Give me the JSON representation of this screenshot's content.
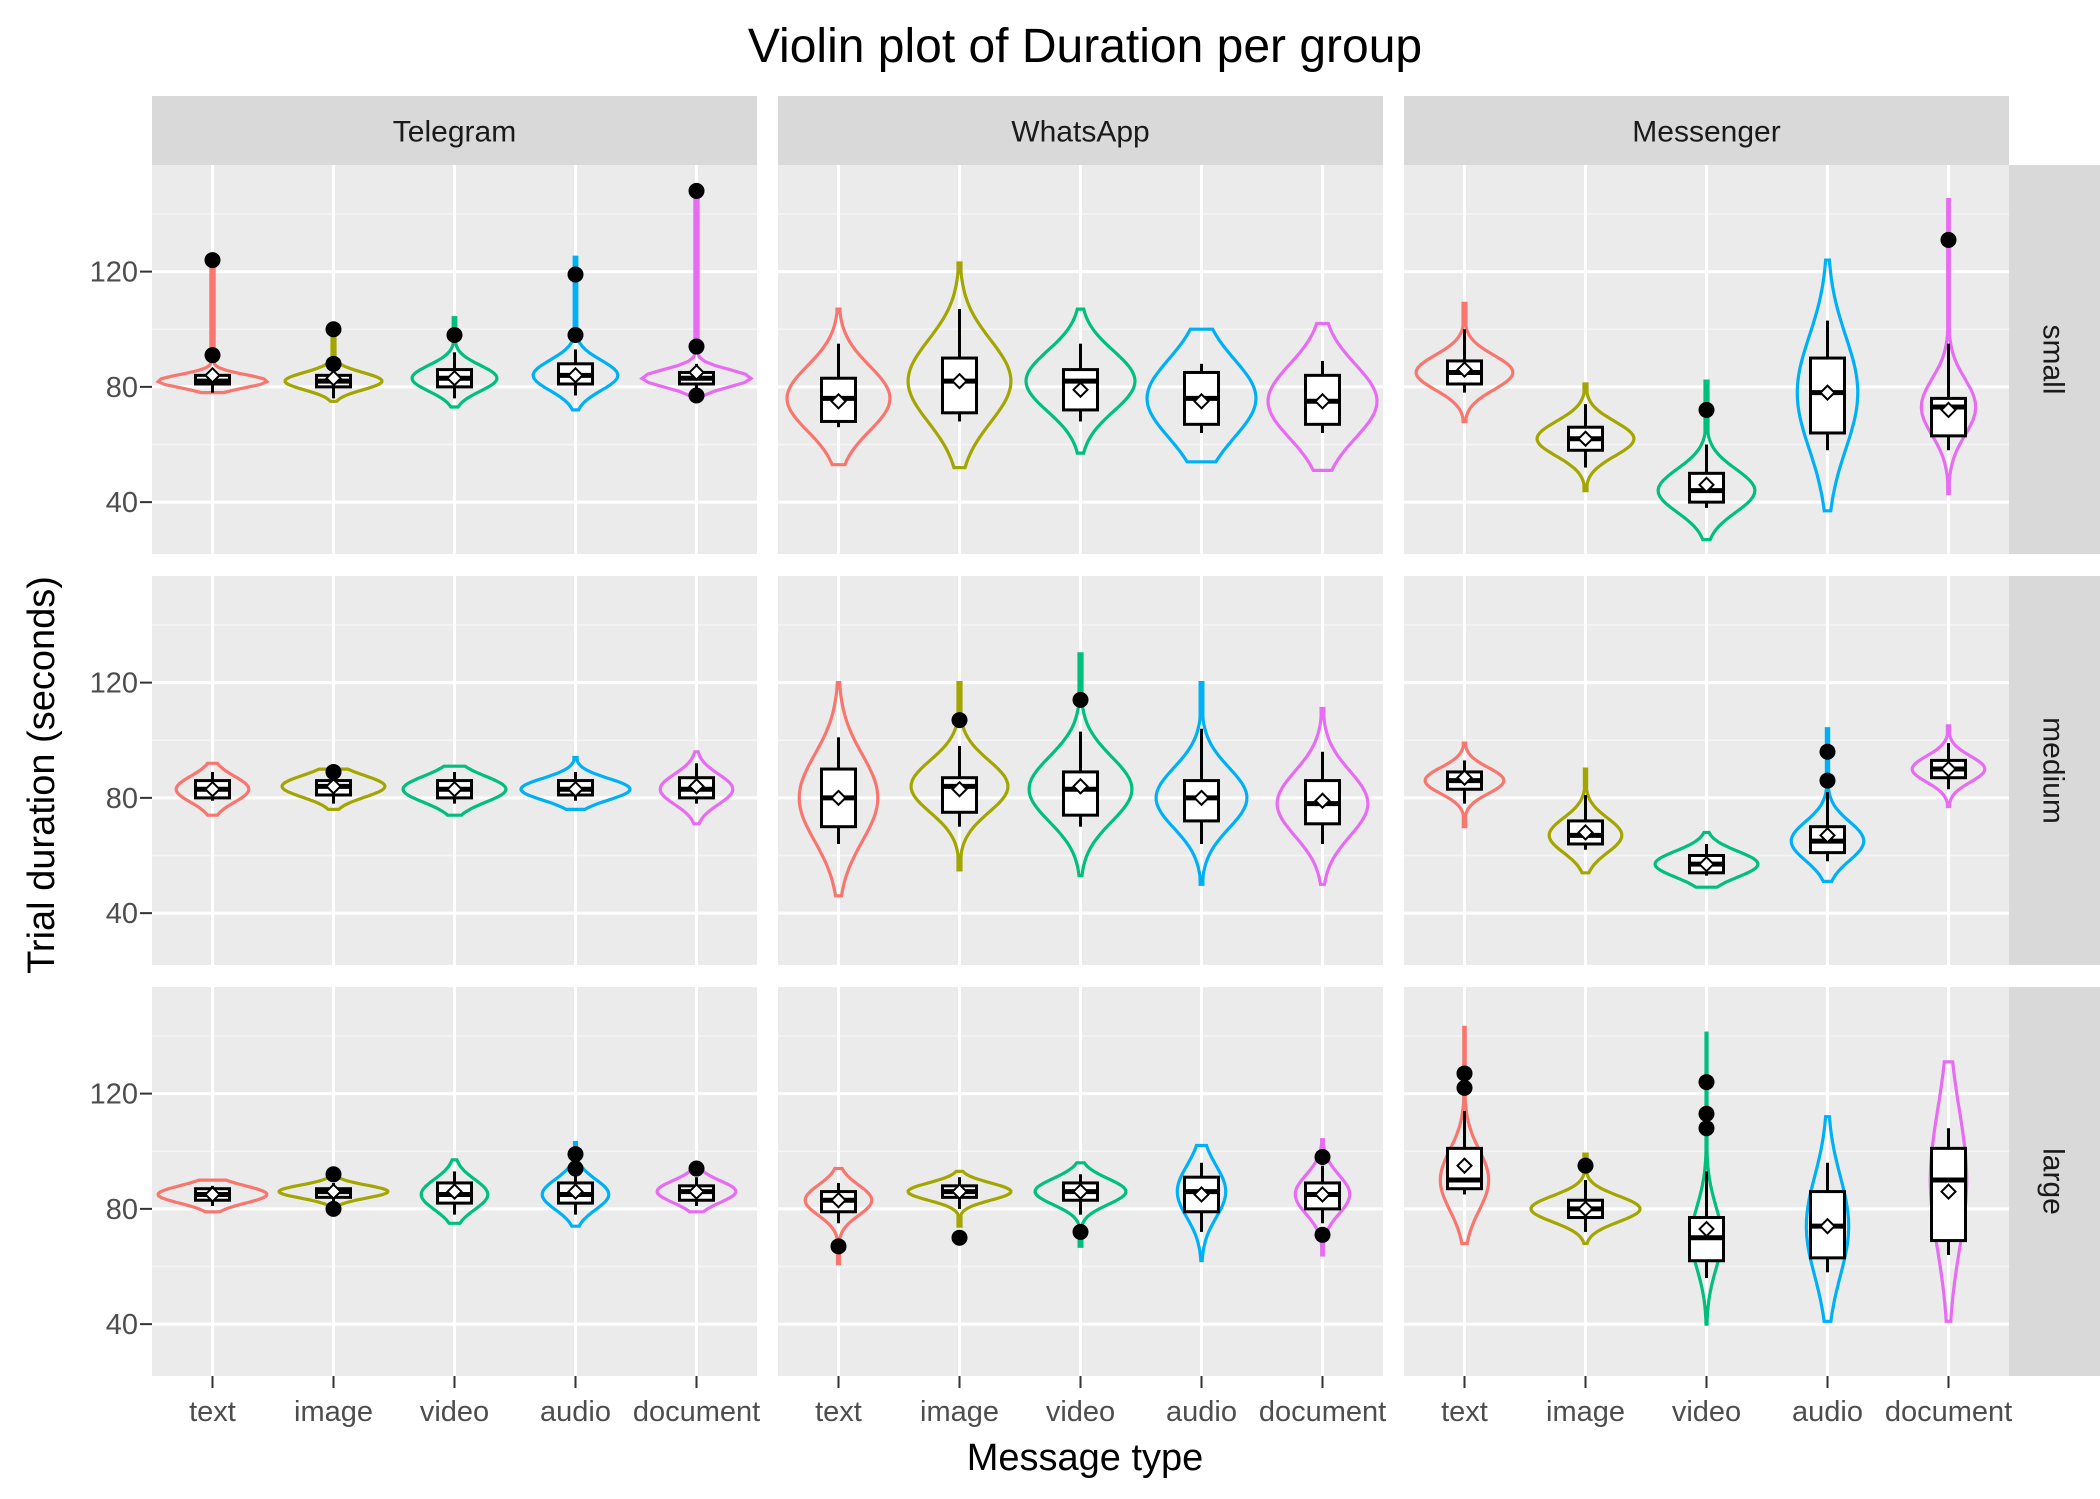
{
  "chart_data": {
    "type": "violin",
    "title": "Violin plot of Duration per group",
    "xlabel": "Message type",
    "ylabel": "Trial duration (seconds)",
    "categories": [
      "text",
      "image",
      "video",
      "audio",
      "document"
    ],
    "columns": [
      "Telegram",
      "WhatsApp",
      "Messenger"
    ],
    "rows": [
      "small",
      "medium",
      "large"
    ],
    "y_ticks": [
      40,
      80,
      120
    ],
    "ylim": [
      22,
      157
    ],
    "category_colors": [
      "#F8766D",
      "#A3A500",
      "#00BF7D",
      "#00B0F6",
      "#E76BF3"
    ],
    "grid": true,
    "panels": [
      {
        "column": "Telegram",
        "row": "small",
        "groups": [
          {
            "category": "text",
            "vmin": 78,
            "vmax": 124,
            "q1": 81,
            "median": 82,
            "q3": 84,
            "wlo": 78,
            "whi": 86,
            "mean": 84,
            "outliers": [
              91,
              124
            ],
            "maxw": 0.9
          },
          {
            "category": "image",
            "vmin": 75,
            "vmax": 100,
            "q1": 80,
            "median": 82,
            "q3": 84,
            "wlo": 76,
            "whi": 88,
            "mean": 83,
            "outliers": [
              88,
              100
            ],
            "maxw": 0.8
          },
          {
            "category": "video",
            "vmin": 73,
            "vmax": 104,
            "q1": 80,
            "median": 83,
            "q3": 86,
            "wlo": 76,
            "whi": 92,
            "mean": 83,
            "outliers": [
              98
            ],
            "maxw": 0.7
          },
          {
            "category": "audio",
            "vmin": 72,
            "vmax": 125,
            "q1": 81,
            "median": 84,
            "q3": 88,
            "wlo": 77,
            "whi": 93,
            "mean": 84,
            "outliers": [
              98,
              119
            ],
            "maxw": 0.7
          },
          {
            "category": "document",
            "vmin": 77,
            "vmax": 148,
            "q1": 81,
            "median": 83,
            "q3": 85,
            "wlo": 78,
            "whi": 88,
            "mean": 85,
            "outliers": [
              77,
              94,
              148
            ],
            "maxw": 0.9
          }
        ]
      },
      {
        "column": "WhatsApp",
        "row": "small",
        "groups": [
          {
            "category": "text",
            "vmin": 53,
            "vmax": 107,
            "q1": 68,
            "median": 76,
            "q3": 83,
            "wlo": 66,
            "whi": 95,
            "mean": 75,
            "outliers": [],
            "maxw": 0.85
          },
          {
            "category": "image",
            "vmin": 52,
            "vmax": 123,
            "q1": 71,
            "median": 82,
            "q3": 90,
            "wlo": 68,
            "whi": 107,
            "mean": 82,
            "outliers": [],
            "maxw": 0.85
          },
          {
            "category": "video",
            "vmin": 57,
            "vmax": 107,
            "q1": 72,
            "median": 82,
            "q3": 86,
            "wlo": 68,
            "whi": 95,
            "mean": 79,
            "outliers": [],
            "maxw": 0.9
          },
          {
            "category": "audio",
            "vmin": 54,
            "vmax": 100,
            "q1": 67,
            "median": 76,
            "q3": 85,
            "wlo": 64,
            "whi": 88,
            "mean": 75,
            "outliers": [],
            "maxw": 0.9
          },
          {
            "category": "document",
            "vmin": 51,
            "vmax": 102,
            "q1": 67,
            "median": 75,
            "q3": 84,
            "wlo": 64,
            "whi": 89,
            "mean": 75,
            "outliers": [],
            "maxw": 0.9
          }
        ]
      },
      {
        "column": "Messenger",
        "row": "small",
        "groups": [
          {
            "category": "text",
            "vmin": 68,
            "vmax": 109,
            "q1": 81,
            "median": 85,
            "q3": 89,
            "wlo": 78,
            "whi": 100,
            "mean": 86,
            "outliers": [],
            "maxw": 0.8
          },
          {
            "category": "image",
            "vmin": 44,
            "vmax": 81,
            "q1": 58,
            "median": 62,
            "q3": 66,
            "wlo": 52,
            "whi": 74,
            "mean": 62,
            "outliers": [],
            "maxw": 0.8
          },
          {
            "category": "video",
            "vmin": 27,
            "vmax": 82,
            "q1": 40,
            "median": 44,
            "q3": 50,
            "wlo": 38,
            "whi": 60,
            "mean": 46,
            "outliers": [
              72
            ],
            "maxw": 0.8
          },
          {
            "category": "audio",
            "vmin": 37,
            "vmax": 124,
            "q1": 64,
            "median": 78,
            "q3": 90,
            "wlo": 58,
            "whi": 103,
            "mean": 78,
            "outliers": [],
            "maxw": 0.5
          },
          {
            "category": "document",
            "vmin": 43,
            "vmax": 145,
            "q1": 63,
            "median": 73,
            "q3": 76,
            "wlo": 58,
            "whi": 95,
            "mean": 72,
            "outliers": [
              131
            ],
            "maxw": 0.45
          }
        ]
      },
      {
        "column": "Telegram",
        "row": "medium",
        "groups": [
          {
            "category": "text",
            "vmin": 74,
            "vmax": 92,
            "q1": 80,
            "median": 83,
            "q3": 86,
            "wlo": 79,
            "whi": 89,
            "mean": 83,
            "outliers": [],
            "maxw": 0.6
          },
          {
            "category": "image",
            "vmin": 76,
            "vmax": 90,
            "q1": 81,
            "median": 84,
            "q3": 86,
            "wlo": 78,
            "whi": 88,
            "mean": 84,
            "outliers": [
              89
            ],
            "maxw": 0.85
          },
          {
            "category": "video",
            "vmin": 74,
            "vmax": 91,
            "q1": 80,
            "median": 83,
            "q3": 86,
            "wlo": 78,
            "whi": 89,
            "mean": 83,
            "outliers": [],
            "maxw": 0.85
          },
          {
            "category": "audio",
            "vmin": 76,
            "vmax": 94,
            "q1": 81,
            "median": 83,
            "q3": 86,
            "wlo": 79,
            "whi": 89,
            "mean": 83,
            "outliers": [],
            "maxw": 0.9
          },
          {
            "category": "document",
            "vmin": 71,
            "vmax": 96,
            "q1": 80,
            "median": 83,
            "q3": 87,
            "wlo": 78,
            "whi": 92,
            "mean": 84,
            "outliers": [],
            "maxw": 0.6
          }
        ]
      },
      {
        "column": "WhatsApp",
        "row": "medium",
        "groups": [
          {
            "category": "text",
            "vmin": 46,
            "vmax": 120,
            "q1": 70,
            "median": 80,
            "q3": 90,
            "wlo": 64,
            "whi": 101,
            "mean": 80,
            "outliers": [],
            "maxw": 0.65
          },
          {
            "category": "image",
            "vmin": 55,
            "vmax": 120,
            "q1": 75,
            "median": 84,
            "q3": 87,
            "wlo": 70,
            "whi": 98,
            "mean": 83,
            "outliers": [
              107
            ],
            "maxw": 0.8
          },
          {
            "category": "video",
            "vmin": 53,
            "vmax": 130,
            "q1": 74,
            "median": 83,
            "q3": 89,
            "wlo": 70,
            "whi": 103,
            "mean": 84,
            "outliers": [
              114
            ],
            "maxw": 0.85
          },
          {
            "category": "audio",
            "vmin": 50,
            "vmax": 120,
            "q1": 72,
            "median": 80,
            "q3": 86,
            "wlo": 64,
            "whi": 104,
            "mean": 80,
            "outliers": [],
            "maxw": 0.75
          },
          {
            "category": "document",
            "vmin": 50,
            "vmax": 111,
            "q1": 71,
            "median": 78,
            "q3": 86,
            "wlo": 64,
            "whi": 96,
            "mean": 79,
            "outliers": [],
            "maxw": 0.75
          }
        ]
      },
      {
        "column": "Messenger",
        "row": "medium",
        "groups": [
          {
            "category": "text",
            "vmin": 70,
            "vmax": 99,
            "q1": 83,
            "median": 86,
            "q3": 89,
            "wlo": 78,
            "whi": 93,
            "mean": 87,
            "outliers": [],
            "maxw": 0.65
          },
          {
            "category": "image",
            "vmin": 54,
            "vmax": 90,
            "q1": 64,
            "median": 67,
            "q3": 72,
            "wlo": 62,
            "whi": 81,
            "mean": 68,
            "outliers": [],
            "maxw": 0.6
          },
          {
            "category": "video",
            "vmin": 49,
            "vmax": 68,
            "q1": 54,
            "median": 57,
            "q3": 60,
            "wlo": 53,
            "whi": 64,
            "mean": 57,
            "outliers": [],
            "maxw": 0.85
          },
          {
            "category": "audio",
            "vmin": 51,
            "vmax": 104,
            "q1": 61,
            "median": 65,
            "q3": 70,
            "wlo": 58,
            "whi": 82,
            "mean": 67,
            "outliers": [
              86,
              96
            ],
            "maxw": 0.6
          },
          {
            "category": "document",
            "vmin": 77,
            "vmax": 105,
            "q1": 87,
            "median": 90,
            "q3": 93,
            "wlo": 83,
            "whi": 99,
            "mean": 90,
            "outliers": [],
            "maxw": 0.6
          }
        ]
      },
      {
        "column": "Telegram",
        "row": "large",
        "groups": [
          {
            "category": "text",
            "vmin": 79,
            "vmax": 90,
            "q1": 83,
            "median": 85,
            "q3": 87,
            "wlo": 81,
            "whi": 88,
            "mean": 85,
            "outliers": [],
            "maxw": 0.9
          },
          {
            "category": "image",
            "vmin": 80,
            "vmax": 92,
            "q1": 84,
            "median": 86,
            "q3": 87,
            "wlo": 82,
            "whi": 89,
            "mean": 86,
            "outliers": [
              80,
              92
            ],
            "maxw": 0.9
          },
          {
            "category": "video",
            "vmin": 75,
            "vmax": 97,
            "q1": 82,
            "median": 85,
            "q3": 89,
            "wlo": 78,
            "whi": 93,
            "mean": 86,
            "outliers": [],
            "maxw": 0.55
          },
          {
            "category": "audio",
            "vmin": 74,
            "vmax": 103,
            "q1": 82,
            "median": 85,
            "q3": 89,
            "wlo": 78,
            "whi": 95,
            "mean": 86,
            "outliers": [
              94,
              99
            ],
            "maxw": 0.55
          },
          {
            "category": "document",
            "vmin": 79,
            "vmax": 94,
            "q1": 83,
            "median": 86,
            "q3": 88,
            "wlo": 81,
            "whi": 91,
            "mean": 86,
            "outliers": [
              94
            ],
            "maxw": 0.65
          }
        ]
      },
      {
        "column": "WhatsApp",
        "row": "large",
        "groups": [
          {
            "category": "text",
            "vmin": 61,
            "vmax": 94,
            "q1": 79,
            "median": 83,
            "q3": 86,
            "wlo": 75,
            "whi": 89,
            "mean": 83,
            "outliers": [
              67
            ],
            "maxw": 0.55
          },
          {
            "category": "image",
            "vmin": 74,
            "vmax": 93,
            "q1": 84,
            "median": 86,
            "q3": 88,
            "wlo": 80,
            "whi": 91,
            "mean": 86,
            "outliers": [
              70
            ],
            "maxw": 0.85
          },
          {
            "category": "video",
            "vmin": 67,
            "vmax": 96,
            "q1": 83,
            "median": 86,
            "q3": 89,
            "wlo": 78,
            "whi": 92,
            "mean": 86,
            "outliers": [
              72
            ],
            "maxw": 0.75
          },
          {
            "category": "audio",
            "vmin": 62,
            "vmax": 102,
            "q1": 79,
            "median": 86,
            "q3": 91,
            "wlo": 72,
            "whi": 96,
            "mean": 85,
            "outliers": [],
            "maxw": 0.4
          },
          {
            "category": "document",
            "vmin": 64,
            "vmax": 104,
            "q1": 80,
            "median": 85,
            "q3": 89,
            "wlo": 75,
            "whi": 95,
            "mean": 85,
            "outliers": [
              71,
              98
            ],
            "maxw": 0.45
          }
        ]
      },
      {
        "column": "Messenger",
        "row": "large",
        "groups": [
          {
            "category": "text",
            "vmin": 68,
            "vmax": 143,
            "q1": 87,
            "median": 90,
            "q3": 101,
            "wlo": 85,
            "whi": 114,
            "mean": 95,
            "outliers": [
              122,
              127
            ],
            "maxw": 0.4
          },
          {
            "category": "image",
            "vmin": 68,
            "vmax": 99,
            "q1": 77,
            "median": 80,
            "q3": 83,
            "wlo": 72,
            "whi": 90,
            "mean": 80,
            "outliers": [
              95
            ],
            "maxw": 0.9
          },
          {
            "category": "video",
            "vmin": 40,
            "vmax": 141,
            "q1": 62,
            "median": 70,
            "q3": 77,
            "wlo": 56,
            "whi": 93,
            "mean": 73,
            "outliers": [
              108,
              113,
              124
            ],
            "maxw": 0.25
          },
          {
            "category": "audio",
            "vmin": 41,
            "vmax": 112,
            "q1": 63,
            "median": 74,
            "q3": 86,
            "wlo": 58,
            "whi": 96,
            "mean": 74,
            "outliers": [],
            "maxw": 0.35
          },
          {
            "category": "document",
            "vmin": 41,
            "vmax": 131,
            "q1": 69,
            "median": 90,
            "q3": 101,
            "wlo": 64,
            "whi": 108,
            "mean": 86,
            "outliers": [],
            "maxw": 0.3
          }
        ]
      }
    ]
  }
}
